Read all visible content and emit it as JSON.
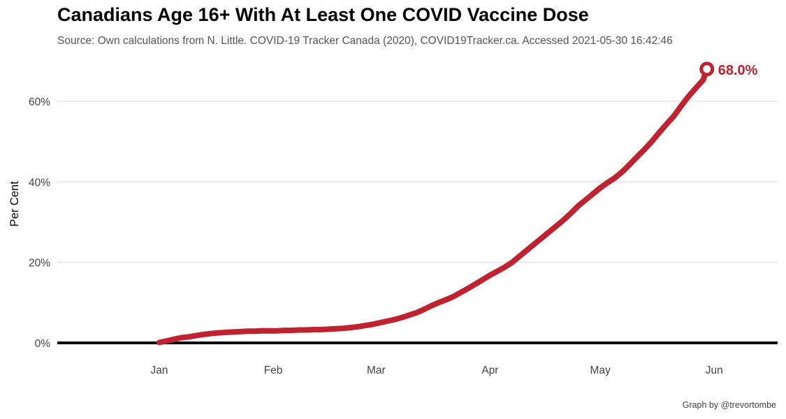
{
  "title": "Canadians Age 16+ With At Least One COVID Vaccine Dose",
  "subtitle": "Source: Own calculations from N. Little. COVID-19 Tracker Canada (2020), COVID19Tracker.ca. Accessed  2021-05-30 16:42:46",
  "caption": "Graph by @trevortombe",
  "colors": {
    "line": "#c0222f",
    "axis": "#000000",
    "grid": "#e6e6e6"
  },
  "chart_data": {
    "type": "line",
    "title": "Canadians Age 16+ With At Least One COVID Vaccine Dose",
    "xlabel": "",
    "ylabel": "Per Cent",
    "ylim": [
      0,
      70
    ],
    "yticks": [
      0,
      20,
      40,
      60
    ],
    "ytick_labels": [
      "0%",
      "20%",
      "40%",
      "60%"
    ],
    "xticks": [
      "Jan",
      "Feb",
      "Mar",
      "Apr",
      "May",
      "Jun"
    ],
    "grid": true,
    "end_label": "68.0%",
    "series": [
      {
        "points": [
          [
            "2021-01-01",
            0.1
          ],
          [
            "2021-01-03",
            0.5
          ],
          [
            "2021-01-05",
            0.9
          ],
          [
            "2021-01-07",
            1.3
          ],
          [
            "2021-01-09",
            1.5
          ],
          [
            "2021-01-11",
            1.8
          ],
          [
            "2021-01-13",
            2.1
          ],
          [
            "2021-01-15",
            2.3
          ],
          [
            "2021-01-17",
            2.5
          ],
          [
            "2021-01-19",
            2.6
          ],
          [
            "2021-01-21",
            2.7
          ],
          [
            "2021-01-23",
            2.8
          ],
          [
            "2021-01-25",
            2.9
          ],
          [
            "2021-01-27",
            2.9
          ],
          [
            "2021-01-29",
            3.0
          ],
          [
            "2021-01-31",
            3.0
          ],
          [
            "2021-02-02",
            3.0
          ],
          [
            "2021-02-04",
            3.1
          ],
          [
            "2021-02-06",
            3.1
          ],
          [
            "2021-02-08",
            3.2
          ],
          [
            "2021-02-10",
            3.2
          ],
          [
            "2021-02-12",
            3.3
          ],
          [
            "2021-02-14",
            3.3
          ],
          [
            "2021-02-16",
            3.4
          ],
          [
            "2021-02-18",
            3.5
          ],
          [
            "2021-02-20",
            3.6
          ],
          [
            "2021-02-22",
            3.8
          ],
          [
            "2021-02-24",
            4.0
          ],
          [
            "2021-02-26",
            4.3
          ],
          [
            "2021-02-28",
            4.6
          ],
          [
            "2021-03-02",
            5.0
          ],
          [
            "2021-03-04",
            5.4
          ],
          [
            "2021-03-06",
            5.8
          ],
          [
            "2021-03-08",
            6.3
          ],
          [
            "2021-03-10",
            6.9
          ],
          [
            "2021-03-12",
            7.5
          ],
          [
            "2021-03-14",
            8.3
          ],
          [
            "2021-03-16",
            9.2
          ],
          [
            "2021-03-18",
            10.0
          ],
          [
            "2021-03-20",
            10.7
          ],
          [
            "2021-03-22",
            11.5
          ],
          [
            "2021-03-24",
            12.5
          ],
          [
            "2021-03-26",
            13.5
          ],
          [
            "2021-03-28",
            14.6
          ],
          [
            "2021-03-30",
            15.7
          ],
          [
            "2021-04-01",
            16.8
          ],
          [
            "2021-04-03",
            17.8
          ],
          [
            "2021-04-05",
            18.8
          ],
          [
            "2021-04-07",
            20.0
          ],
          [
            "2021-04-09",
            21.5
          ],
          [
            "2021-04-11",
            23.0
          ],
          [
            "2021-04-13",
            24.5
          ],
          [
            "2021-04-15",
            26.0
          ],
          [
            "2021-04-17",
            27.5
          ],
          [
            "2021-04-19",
            29.0
          ],
          [
            "2021-04-21",
            30.5
          ],
          [
            "2021-04-23",
            32.2
          ],
          [
            "2021-04-25",
            34.0
          ],
          [
            "2021-04-27",
            35.5
          ],
          [
            "2021-04-29",
            37.0
          ],
          [
            "2021-05-01",
            38.5
          ],
          [
            "2021-05-03",
            39.8
          ],
          [
            "2021-05-05",
            41.0
          ],
          [
            "2021-05-07",
            42.5
          ],
          [
            "2021-05-09",
            44.3
          ],
          [
            "2021-05-11",
            46.2
          ],
          [
            "2021-05-13",
            48.0
          ],
          [
            "2021-05-15",
            50.0
          ],
          [
            "2021-05-17",
            52.2
          ],
          [
            "2021-05-19",
            54.3
          ],
          [
            "2021-05-21",
            56.3
          ],
          [
            "2021-05-23",
            58.8
          ],
          [
            "2021-05-25",
            61.2
          ],
          [
            "2021-05-27",
            63.3
          ],
          [
            "2021-05-29",
            65.3
          ],
          [
            "2021-05-30",
            68.0
          ]
        ]
      }
    ]
  }
}
